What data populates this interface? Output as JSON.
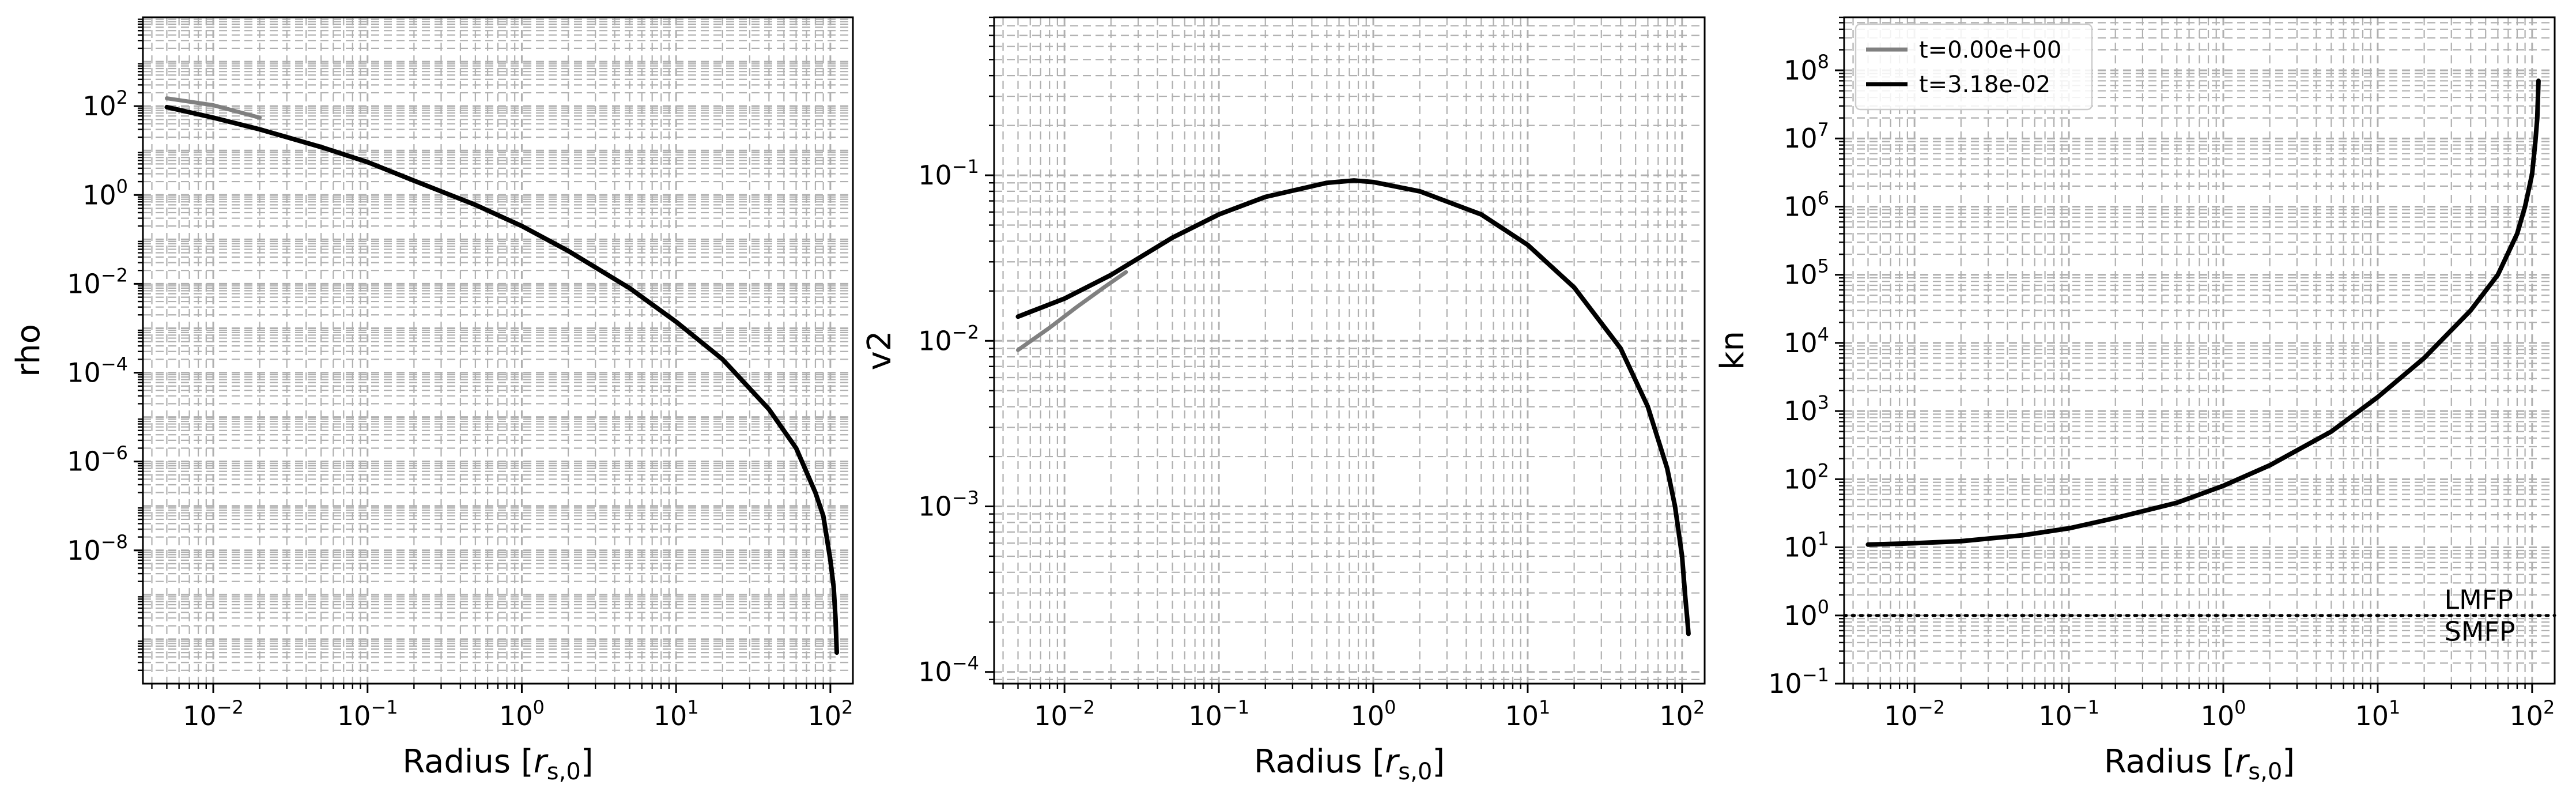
{
  "colors": {
    "initial": "#808080",
    "final": "#000000",
    "grid": "#b0b0b0",
    "ref_line": "#000000"
  },
  "legend": {
    "placement": "upper-left",
    "entries": [
      "t=0.00e+00",
      "t=3.18e-02"
    ]
  },
  "chart_data": [
    {
      "type": "line",
      "xscale": "log",
      "yscale": "log",
      "xlabel": "Radius [r_{s,0}]",
      "ylabel": "rho",
      "xlim": [
        0.0035,
        140
      ],
      "ylim": [
        1e-11,
        10000.0
      ],
      "grid": true,
      "x_ticks": [
        {
          "value": 0.01,
          "mant": "10",
          "exp": "−2"
        },
        {
          "value": 0.1,
          "mant": "10",
          "exp": "−1"
        },
        {
          "value": 1,
          "mant": "10",
          "exp": "0"
        },
        {
          "value": 10,
          "mant": "10",
          "exp": "1"
        },
        {
          "value": 100,
          "mant": "10",
          "exp": "2"
        }
      ],
      "y_ticks": [
        {
          "value": 100,
          "mant": "10",
          "exp": "2"
        },
        {
          "value": 1,
          "mant": "10",
          "exp": "0"
        },
        {
          "value": 0.01,
          "mant": "10",
          "exp": "−2"
        },
        {
          "value": 0.0001,
          "mant": "10",
          "exp": "−4"
        },
        {
          "value": 1e-06,
          "mant": "10",
          "exp": "−6"
        },
        {
          "value": 1e-08,
          "mant": "10",
          "exp": "−8"
        }
      ],
      "series": [
        {
          "name": "t=0.00e+00",
          "color": "#808080",
          "x": [
            0.005,
            0.01,
            0.02
          ],
          "y": [
            150,
            105,
            55
          ]
        },
        {
          "name": "t=3.18e-02",
          "color": "#000000",
          "x": [
            0.005,
            0.01,
            0.02,
            0.05,
            0.1,
            0.2,
            0.5,
            1,
            2,
            5,
            10,
            20,
            40,
            60,
            80,
            90,
            100,
            105,
            108,
            110
          ],
          "y": [
            95,
            55,
            30,
            12,
            5.5,
            2.1,
            0.6,
            0.2,
            0.055,
            0.008,
            0.0014,
            0.0002,
            1.5e-05,
            2e-06,
            2e-07,
            6e-08,
            6e-09,
            1.5e-09,
            3e-10,
            5e-11
          ]
        }
      ],
      "annotations": []
    },
    {
      "type": "line",
      "xscale": "log",
      "yscale": "log",
      "xlabel": "Radius [r_{s,0}]",
      "ylabel": "v2",
      "xlim": [
        0.0035,
        140
      ],
      "ylim": [
        8.5e-05,
        0.9
      ],
      "grid": true,
      "x_ticks": [
        {
          "value": 0.01,
          "mant": "10",
          "exp": "−2"
        },
        {
          "value": 0.1,
          "mant": "10",
          "exp": "−1"
        },
        {
          "value": 1,
          "mant": "10",
          "exp": "0"
        },
        {
          "value": 10,
          "mant": "10",
          "exp": "1"
        },
        {
          "value": 100,
          "mant": "10",
          "exp": "2"
        }
      ],
      "y_ticks": [
        {
          "value": 0.1,
          "mant": "10",
          "exp": "−1"
        },
        {
          "value": 0.01,
          "mant": "10",
          "exp": "−2"
        },
        {
          "value": 0.001,
          "mant": "10",
          "exp": "−3"
        },
        {
          "value": 0.0001,
          "mant": "10",
          "exp": "−4"
        }
      ],
      "series": [
        {
          "name": "t=0.00e+00",
          "color": "#808080",
          "x": [
            0.005,
            0.008,
            0.012,
            0.018,
            0.025
          ],
          "y": [
            0.0088,
            0.012,
            0.016,
            0.021,
            0.026
          ]
        },
        {
          "name": "t=3.18e-02",
          "color": "#000000",
          "x": [
            0.005,
            0.01,
            0.02,
            0.05,
            0.1,
            0.2,
            0.5,
            0.75,
            1,
            2,
            5,
            10,
            20,
            40,
            60,
            80,
            90,
            100,
            105,
            108,
            110
          ],
          "y": [
            0.014,
            0.018,
            0.025,
            0.042,
            0.058,
            0.074,
            0.09,
            0.093,
            0.091,
            0.08,
            0.058,
            0.038,
            0.021,
            0.009,
            0.004,
            0.0017,
            0.001,
            0.0005,
            0.00028,
            0.00021,
            0.00017
          ]
        }
      ],
      "annotations": []
    },
    {
      "type": "line",
      "xscale": "log",
      "yscale": "log",
      "xlabel": "Radius [r_{s,0}]",
      "ylabel": "kn",
      "xlim": [
        0.0035,
        140
      ],
      "ylim": [
        0.1,
        600000000.0
      ],
      "grid": true,
      "x_ticks": [
        {
          "value": 0.01,
          "mant": "10",
          "exp": "−2"
        },
        {
          "value": 0.1,
          "mant": "10",
          "exp": "−1"
        },
        {
          "value": 1,
          "mant": "10",
          "exp": "0"
        },
        {
          "value": 10,
          "mant": "10",
          "exp": "1"
        },
        {
          "value": 100,
          "mant": "10",
          "exp": "2"
        }
      ],
      "y_ticks": [
        {
          "value": 100000000.0,
          "mant": "10",
          "exp": "8"
        },
        {
          "value": 10000000.0,
          "mant": "10",
          "exp": "7"
        },
        {
          "value": 1000000.0,
          "mant": "10",
          "exp": "6"
        },
        {
          "value": 100000.0,
          "mant": "10",
          "exp": "5"
        },
        {
          "value": 10000.0,
          "mant": "10",
          "exp": "4"
        },
        {
          "value": 1000.0,
          "mant": "10",
          "exp": "3"
        },
        {
          "value": 100,
          "mant": "10",
          "exp": "2"
        },
        {
          "value": 10,
          "mant": "10",
          "exp": "1"
        },
        {
          "value": 1,
          "mant": "10",
          "exp": "0"
        },
        {
          "value": 0.1,
          "mant": "10",
          "exp": "−1"
        }
      ],
      "series": [
        {
          "name": "t=0.00e+00",
          "color": "#808080",
          "x": [
            0.005,
            0.01,
            0.02
          ],
          "y": [
            11,
            11.5,
            12.3
          ]
        },
        {
          "name": "t=3.18e-02",
          "color": "#000000",
          "x": [
            0.005,
            0.01,
            0.02,
            0.05,
            0.1,
            0.2,
            0.5,
            1,
            2,
            5,
            10,
            20,
            40,
            60,
            80,
            90,
            100,
            105,
            108,
            110
          ],
          "y": [
            11,
            11.5,
            12.3,
            15,
            19,
            27,
            45,
            80,
            160,
            500,
            1600,
            6000,
            30000,
            100000,
            400000,
            1000000,
            3000000,
            9000000,
            20000000,
            70000000
          ]
        }
      ],
      "reference_line": {
        "y": 1,
        "style": "dotted"
      },
      "annotations": [
        {
          "text": "LMFP",
          "x": 27,
          "y": 1.7
        },
        {
          "text": "SMFP",
          "x": 27,
          "y": 0.58
        }
      ]
    }
  ]
}
